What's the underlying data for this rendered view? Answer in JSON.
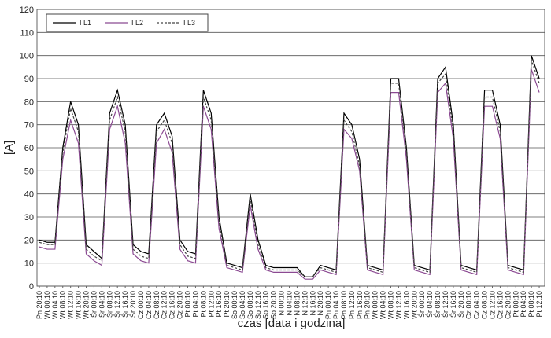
{
  "chart_data": {
    "type": "line",
    "y_label": "[A]",
    "x_label": "czas [data i godzina]",
    "categories": [
      "Pn 20:10",
      "Wt 00:10",
      "Wt 04:10",
      "Wt 08:10",
      "Wt 12:10",
      "Wt 16:10",
      "Wt 20:10",
      "Śr 00:10",
      "Śr 04:10",
      "Śr 08:10",
      "Śr 12:10",
      "Śr 16:10",
      "Śr 20:10",
      "Cz 00:10",
      "Cz 04:10",
      "Cz 08:10",
      "Cz 12:10",
      "Cz 16:10",
      "Cz 20:10",
      "Pt 00:10",
      "Pt 04:10",
      "Pt 08:10",
      "Pt 12:10",
      "Pt 16:10",
      "Pt 20:10",
      "So 00:10",
      "So 04:10",
      "So 08:10",
      "So 12:10",
      "So 16:10",
      "So 20:10",
      "N 00:10",
      "N 04:10",
      "N 08:10",
      "N 12:10",
      "N 16:10",
      "N 20:10",
      "Pn 00:10",
      "Pn 04:10",
      "Pn 08:10",
      "Pn 12:10",
      "Pn 16:10",
      "Pn 20:10",
      "Wt 00:10",
      "Wt 04:10",
      "Wt 08:10",
      "Wt 12:10",
      "Wt 16:10",
      "Wt 20:10",
      "Śr 00:10",
      "Śr 04:10",
      "Śr 08:10",
      "Śr 12:10",
      "Śr 16:10",
      "Śr 20:10",
      "Cz 00:10",
      "Cz 04:10",
      "Cz 08:10",
      "Cz 12:10",
      "Cz 16:10",
      "Cz 20:10",
      "Pt 00:10",
      "Pt 04:10",
      "Pt 08:10",
      "Pt 12:10"
    ],
    "series": [
      {
        "name": "I L1",
        "color": "#000000",
        "dashed": false,
        "values": [
          20,
          19,
          19,
          60,
          80,
          70,
          18,
          15,
          12,
          75,
          85,
          70,
          18,
          15,
          14,
          70,
          75,
          65,
          20,
          15,
          14,
          85,
          75,
          30,
          10,
          9,
          8,
          40,
          20,
          9,
          8,
          8,
          8,
          8,
          4,
          4,
          9,
          8,
          7,
          75,
          70,
          55,
          9,
          8,
          7,
          90,
          90,
          60,
          9,
          8,
          7,
          90,
          95,
          70,
          9,
          8,
          7,
          85,
          85,
          70,
          9,
          8,
          7,
          100,
          90
        ]
      },
      {
        "name": "I L2",
        "color": "#8b4a92",
        "dashed": false,
        "values": [
          17,
          16,
          16,
          55,
          72,
          62,
          14,
          11,
          9,
          68,
          78,
          62,
          14,
          11,
          10,
          62,
          68,
          58,
          16,
          11,
          10,
          78,
          68,
          25,
          8,
          7,
          6,
          35,
          16,
          7,
          6,
          6,
          6,
          6,
          3,
          3,
          7,
          6,
          5,
          68,
          64,
          50,
          7,
          6,
          5,
          84,
          84,
          55,
          7,
          6,
          5,
          84,
          88,
          64,
          7,
          6,
          5,
          78,
          78,
          64,
          7,
          6,
          5,
          94,
          84
        ]
      },
      {
        "name": "I L3",
        "color": "#444444",
        "dashed": true,
        "values": [
          19,
          18,
          18,
          58,
          77,
          67,
          16,
          13,
          11,
          72,
          82,
          67,
          16,
          13,
          12,
          67,
          72,
          62,
          18,
          13,
          12,
          82,
          72,
          28,
          9,
          8,
          7,
          38,
          18,
          8,
          7,
          7,
          7,
          7,
          4,
          4,
          8,
          7,
          6,
          72,
          67,
          52,
          8,
          7,
          6,
          88,
          88,
          58,
          8,
          7,
          6,
          88,
          92,
          67,
          8,
          7,
          6,
          82,
          82,
          67,
          8,
          7,
          6,
          98,
          88
        ]
      }
    ],
    "ylim": [
      0,
      120
    ],
    "yticks": [
      0,
      10,
      20,
      30,
      40,
      50,
      60,
      70,
      80,
      90,
      100,
      110,
      120
    ],
    "grid": true,
    "legend": "top-left"
  }
}
